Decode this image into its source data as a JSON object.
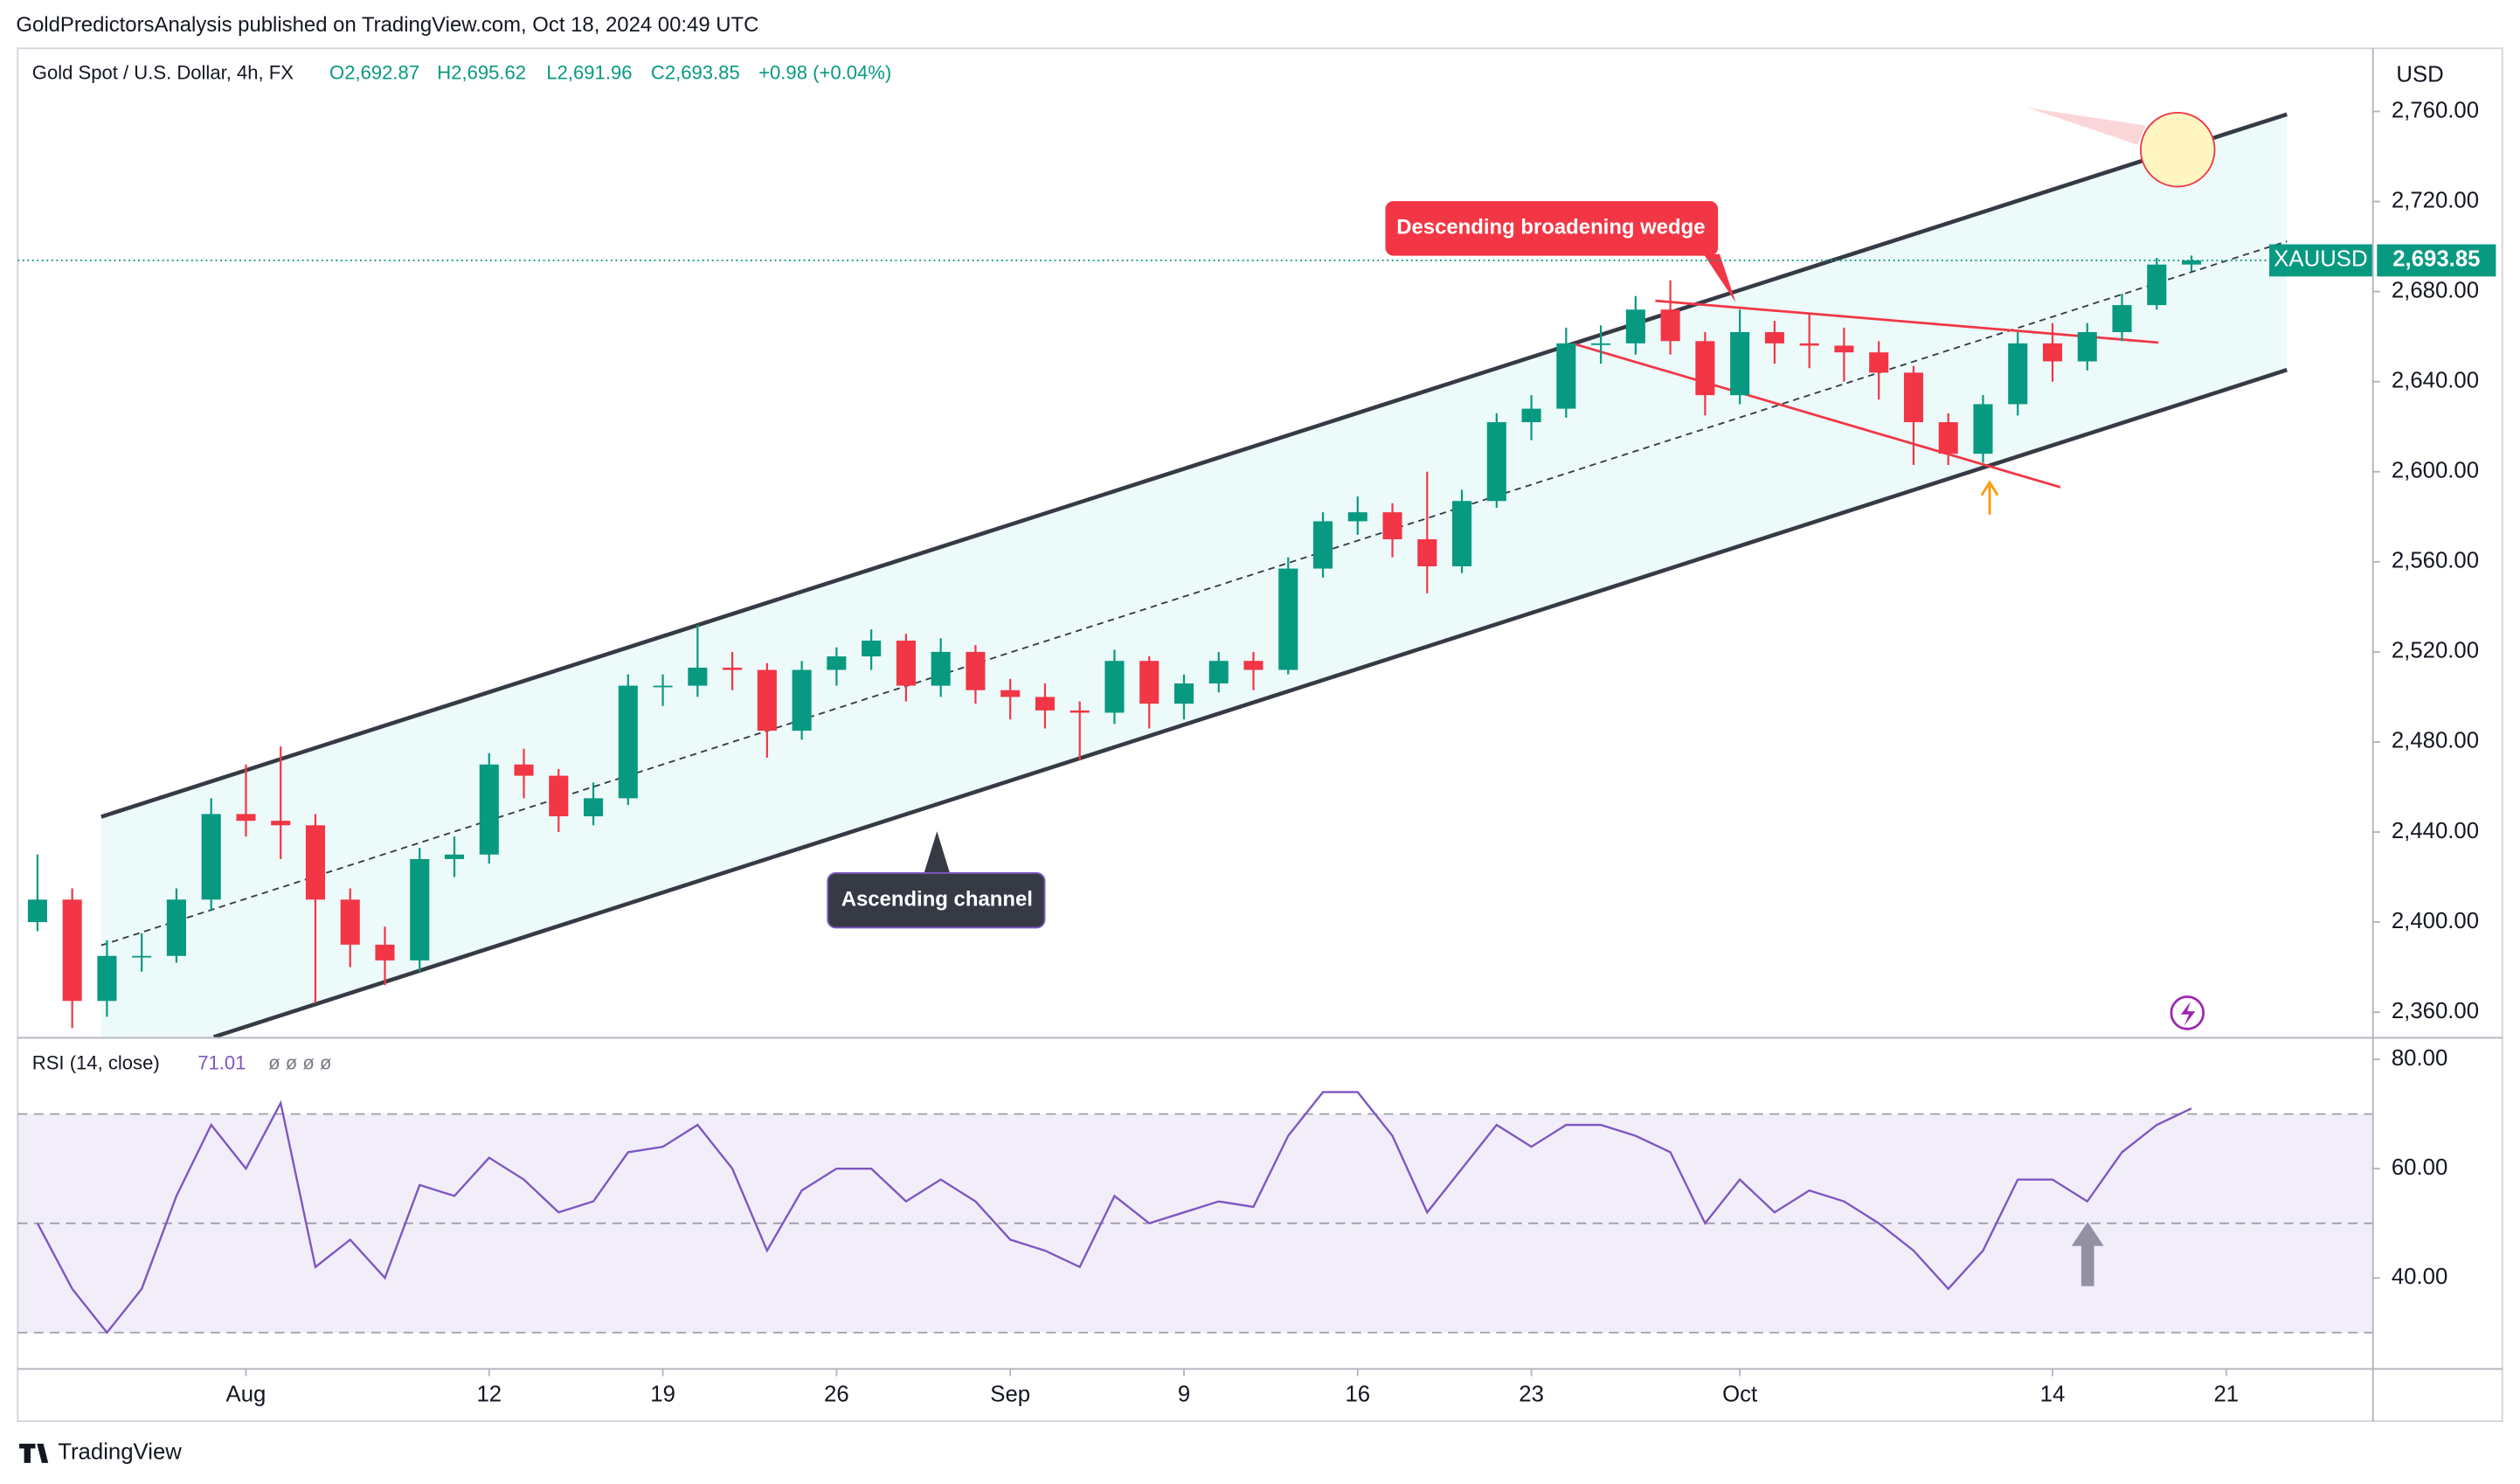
{
  "header": {
    "publisher": "GoldPredictorsAnalysis published on TradingView.com, Oct 18, 2024 00:49 UTC",
    "symbol": "Gold Spot / U.S. Dollar, 4h, FX",
    "open": "O2,692.87",
    "high": "H2,695.62",
    "low": "L2,691.96",
    "close": "C2,693.85",
    "change": "+0.98 (+0.04%)",
    "currency": "USD"
  },
  "chart_data": [
    {
      "type": "candlestick",
      "up_color": "#089981",
      "down_color": "#f23645",
      "x": [
        0,
        1,
        2,
        3,
        4,
        5,
        6,
        7,
        8,
        9,
        10,
        11,
        12,
        13,
        14,
        15,
        16,
        17,
        18,
        19,
        20,
        21,
        22,
        23,
        24,
        25,
        26,
        27,
        28,
        29,
        30,
        31,
        32,
        33,
        34,
        35,
        36,
        37,
        38,
        39,
        40,
        41,
        42,
        43,
        44,
        45,
        46,
        47,
        48,
        49,
        50,
        51,
        52,
        53,
        54,
        55,
        56,
        57,
        58,
        59,
        60,
        61,
        62
      ],
      "open": [
        2400,
        2410,
        2365,
        2385,
        2385,
        2410,
        2448,
        2445,
        2443,
        2410,
        2390,
        2383,
        2428,
        2430,
        2470,
        2465,
        2447,
        2455,
        2505,
        2505,
        2513,
        2512,
        2485,
        2512,
        2518,
        2525,
        2505,
        2520,
        2503,
        2500,
        2494,
        2493,
        2516,
        2497,
        2506,
        2516,
        2512,
        2557,
        2578,
        2582,
        2570,
        2558,
        2587,
        2622,
        2628,
        2657,
        2657,
        2672,
        2658,
        2634,
        2662,
        2657,
        2656,
        2653,
        2644,
        2622,
        2608,
        2630,
        2657,
        2649,
        2662,
        2674,
        2692
      ],
      "high": [
        2430,
        2415,
        2392,
        2395,
        2415,
        2455,
        2470,
        2478,
        2448,
        2415,
        2398,
        2433,
        2438,
        2475,
        2477,
        2468,
        2462,
        2510,
        2510,
        2532,
        2520,
        2515,
        2516,
        2522,
        2530,
        2528,
        2526,
        2523,
        2508,
        2506,
        2498,
        2521,
        2518,
        2510,
        2520,
        2520,
        2562,
        2582,
        2589,
        2586,
        2600,
        2592,
        2626,
        2634,
        2664,
        2665,
        2678,
        2685,
        2662,
        2672,
        2667,
        2670,
        2664,
        2658,
        2647,
        2626,
        2634,
        2662,
        2666,
        2666,
        2679,
        2695,
        2696
      ],
      "low": [
        2396,
        2353,
        2358,
        2378,
        2382,
        2405,
        2438,
        2428,
        2364,
        2380,
        2372,
        2378,
        2420,
        2426,
        2455,
        2440,
        2443,
        2452,
        2496,
        2500,
        2503,
        2473,
        2481,
        2505,
        2512,
        2498,
        2500,
        2497,
        2490,
        2486,
        2472,
        2488,
        2486,
        2490,
        2502,
        2503,
        2510,
        2553,
        2572,
        2562,
        2546,
        2555,
        2584,
        2614,
        2624,
        2648,
        2652,
        2652,
        2625,
        2630,
        2648,
        2646,
        2640,
        2632,
        2603,
        2603,
        2604,
        2625,
        2640,
        2645,
        2658,
        2672,
        2689
      ],
      "close": [
        2410,
        2365,
        2385,
        2385,
        2410,
        2448,
        2445,
        2443,
        2410,
        2390,
        2383,
        2428,
        2430,
        2470,
        2465,
        2447,
        2455,
        2505,
        2505,
        2513,
        2512,
        2485,
        2512,
        2518,
        2525,
        2505,
        2520,
        2503,
        2500,
        2494,
        2493,
        2516,
        2497,
        2506,
        2516,
        2512,
        2557,
        2578,
        2582,
        2570,
        2558,
        2587,
        2622,
        2628,
        2657,
        2657,
        2672,
        2658,
        2634,
        2662,
        2657,
        2656,
        2653,
        2644,
        2622,
        2608,
        2630,
        2657,
        2649,
        2662,
        2674,
        2692,
        2693.85
      ],
      "xlim": [
        -0.57,
        67.2
      ],
      "ylim": [
        2349,
        2788
      ],
      "yticks": [
        {
          "value": 2360,
          "label": "2,360.00"
        },
        {
          "value": 2400,
          "label": "2,400.00"
        },
        {
          "value": 2440,
          "label": "2,440.00"
        },
        {
          "value": 2480,
          "label": "2,480.00"
        },
        {
          "value": 2520,
          "label": "2,520.00"
        },
        {
          "value": 2560,
          "label": "2,560.00"
        },
        {
          "value": 2600,
          "label": "2,600.00"
        },
        {
          "value": 2640,
          "label": "2,640.00"
        },
        {
          "value": 2680,
          "label": "2,680.00"
        },
        {
          "value": 2720,
          "label": "2,720.00"
        },
        {
          "value": 2760,
          "label": "2,760.00"
        }
      ],
      "xticks": [
        {
          "value": 6,
          "label": "Aug"
        },
        {
          "value": 13,
          "label": "12"
        },
        {
          "value": 18,
          "label": "19"
        },
        {
          "value": 23,
          "label": "26"
        },
        {
          "value": 28,
          "label": "Sep"
        },
        {
          "value": 33,
          "label": "9"
        },
        {
          "value": 38,
          "label": "16"
        },
        {
          "value": 43,
          "label": "23"
        },
        {
          "value": 49,
          "label": "Oct"
        },
        {
          "value": 58,
          "label": "14"
        },
        {
          "value": 63,
          "label": "21"
        }
      ],
      "last_price": {
        "name": "XAUUSD",
        "value": 2693.85,
        "label": "2,693.85"
      },
      "annotations": [
        "Descending broadening wedge",
        "Ascending channel"
      ]
    },
    {
      "type": "line",
      "title": "RSI (14, close)",
      "value_label": "71.01",
      "placeholders": "ø ø ø ø",
      "color": "#7e57c2",
      "series": [
        {
          "name": "RSI",
          "color": "#7e57c2",
          "values": [
            50,
            38,
            30,
            38,
            55,
            68,
            60,
            72,
            42,
            47,
            40,
            57,
            55,
            62,
            58,
            52,
            54,
            63,
            64,
            68,
            60,
            45,
            56,
            60,
            60,
            54,
            58,
            54,
            47,
            45,
            42,
            55,
            50,
            52,
            54,
            53,
            66,
            74,
            74,
            66,
            52,
            60,
            68,
            64,
            68,
            68,
            66,
            63,
            50,
            58,
            52,
            56,
            54,
            50,
            45,
            38,
            45,
            58,
            58,
            54,
            63,
            68,
            71.01
          ]
        }
      ],
      "ylim": [
        23.5,
        83.5
      ],
      "levels": [
        30,
        50,
        70
      ],
      "yticks": [
        {
          "value": 40,
          "label": "40.00"
        },
        {
          "value": 60,
          "label": "60.00"
        },
        {
          "value": 80,
          "label": "80.00"
        }
      ]
    }
  ],
  "footer": {
    "brand": "TradingView"
  }
}
